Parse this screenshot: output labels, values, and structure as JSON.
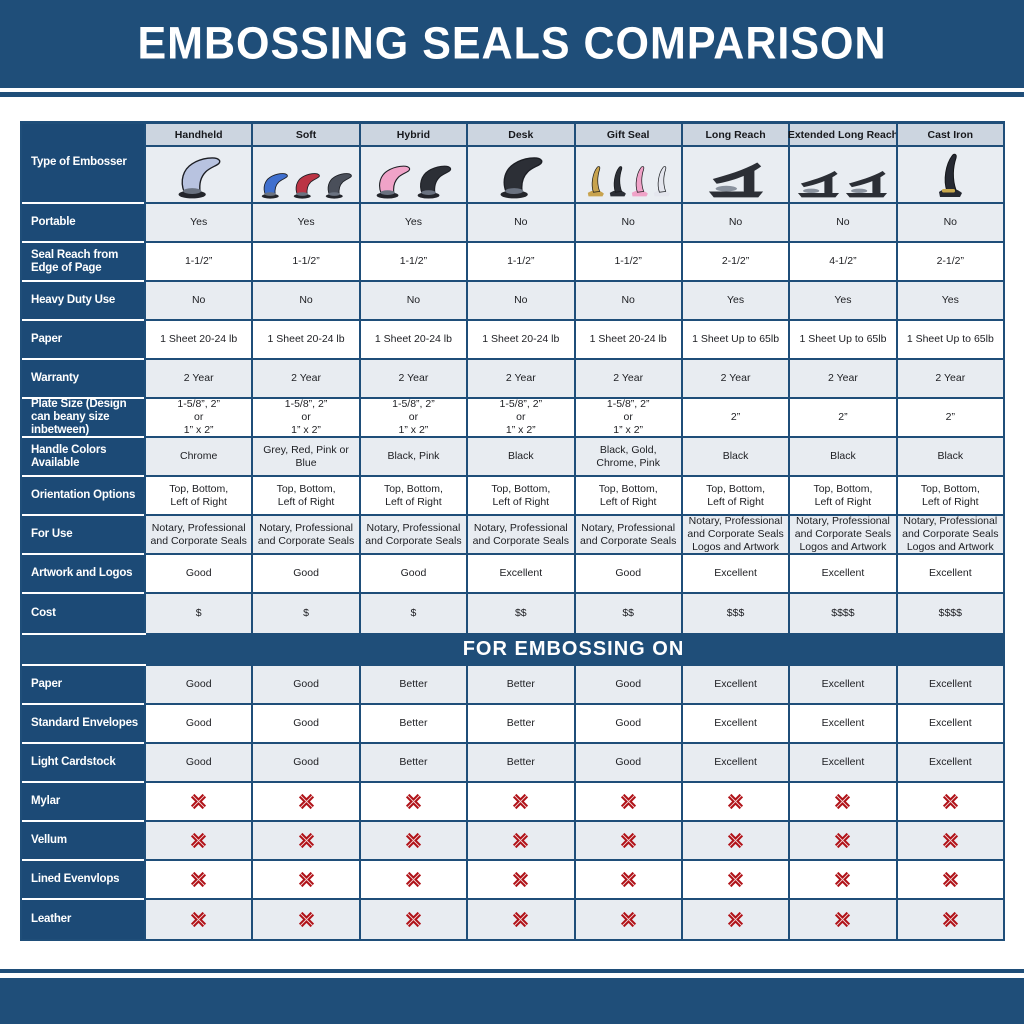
{
  "header": {
    "title": "EMBOSSING SEALS COMPARISON"
  },
  "colors": {
    "navy": "#1f4e79",
    "label_navy": "#1c4a76",
    "header_cell_bg": "#ccd5e0",
    "shade_row_bg": "#e8ecf1",
    "image_row_bg": "#e9edf2",
    "x_red": "#b01218"
  },
  "icons": {
    "not_suitable_icon": "✖"
  },
  "chart_data": {
    "type": "table",
    "title": "EMBOSSING SEALS COMPARISON",
    "corner_label": "Type of Embosser",
    "columns": [
      "Handheld",
      "Soft",
      "Hybrid",
      "Desk",
      "Gift Seal",
      "Long Reach",
      "Extended Long Reach",
      "Cast Iron"
    ],
    "embossers": [
      {
        "icon": "handheld-embosser-image",
        "shape": "clamp",
        "unit_colors": [
          "#b8c3e0"
        ]
      },
      {
        "icon": "soft-embosser-image",
        "shape": "clamp",
        "unit_colors": [
          "#3f6fce",
          "#bb3444",
          "#4a4f5a"
        ]
      },
      {
        "icon": "hybrid-embosser-image",
        "shape": "clamp",
        "unit_colors": [
          "#f0a3c8",
          "#2c2f36"
        ]
      },
      {
        "icon": "desk-embosser-image",
        "shape": "clamp",
        "unit_colors": [
          "#2c2f36"
        ]
      },
      {
        "icon": "gift-seal-embosser-image",
        "shape": "upright",
        "unit_colors": [
          "#c8a34e",
          "#2c2f36",
          "#f0a3c8",
          "#e4e6ee"
        ]
      },
      {
        "icon": "long-reach-embosser-image",
        "shape": "press",
        "unit_colors": [
          "#2c2f36"
        ]
      },
      {
        "icon": "extended-long-reach-embosser-image",
        "shape": "press",
        "unit_colors": [
          "#2c2f36",
          "#2c2f36"
        ]
      },
      {
        "icon": "cast-iron-embosser-image",
        "shape": "upright-gold",
        "unit_colors": [
          "#262932"
        ]
      }
    ],
    "rows": [
      {
        "label": "Portable",
        "values": [
          "Yes",
          "Yes",
          "Yes",
          "No",
          "No",
          "No",
          "No",
          "No"
        ]
      },
      {
        "label": "Seal Reach from Edge of Page",
        "values": [
          "1-1/2”",
          "1-1/2”",
          "1-1/2”",
          "1-1/2”",
          "1-1/2”",
          "2-1/2”",
          "4-1/2”",
          "2-1/2”"
        ]
      },
      {
        "label": "Heavy Duty Use",
        "values": [
          "No",
          "No",
          "No",
          "No",
          "No",
          "Yes",
          "Yes",
          "Yes"
        ]
      },
      {
        "label": "Paper",
        "values": [
          "1 Sheet 20-24 lb",
          "1 Sheet 20-24 lb",
          "1 Sheet 20-24 lb",
          "1 Sheet 20-24 lb",
          "1 Sheet 20-24 lb",
          "1 Sheet Up to 65lb",
          "1 Sheet Up to 65lb",
          "1 Sheet Up to 65lb"
        ]
      },
      {
        "label": "Warranty",
        "values": [
          "2 Year",
          "2 Year",
          "2 Year",
          "2 Year",
          "2 Year",
          "2 Year",
          "2 Year",
          "2 Year"
        ]
      },
      {
        "label": "Plate Size (Design can beany size inbetween)",
        "values": [
          "1-5/8”, 2”\nor\n1” x 2”",
          "1-5/8”, 2”\nor\n1” x 2”",
          "1-5/8”, 2”\nor\n1” x 2”",
          "1-5/8”, 2”\nor\n1” x 2”",
          "1-5/8”, 2”\nor\n1” x 2”",
          "2”",
          "2”",
          "2”"
        ]
      },
      {
        "label": "Handle Colors Available",
        "values": [
          "Chrome",
          "Grey, Red, Pink or Blue",
          "Black, Pink",
          "Black",
          "Black, Gold, Chrome, Pink",
          "Black",
          "Black",
          "Black"
        ]
      },
      {
        "label": "Orientation Options",
        "values": [
          "Top, Bottom,\nLeft of Right",
          "Top, Bottom,\nLeft of Right",
          "Top, Bottom,\nLeft of Right",
          "Top, Bottom,\nLeft of Right",
          "Top, Bottom,\nLeft of Right",
          "Top, Bottom,\nLeft of Right",
          "Top, Bottom,\nLeft of Right",
          "Top, Bottom,\nLeft of Right"
        ]
      },
      {
        "label": "For Use",
        "values": [
          "Notary, Professional\nand Corporate Seals",
          "Notary, Professional\nand Corporate Seals",
          "Notary, Professional\nand Corporate Seals",
          "Notary, Professional\nand Corporate Seals",
          "Notary, Professional\nand Corporate Seals",
          "Notary, Professional\nand Corporate Seals\nLogos and Artwork",
          "Notary, Professional\nand Corporate Seals\nLogos and Artwork",
          "Notary, Professional\nand Corporate Seals\nLogos and Artwork"
        ]
      },
      {
        "label": "Artwork and Logos",
        "values": [
          "Good",
          "Good",
          "Good",
          "Excellent",
          "Good",
          "Excellent",
          "Excellent",
          "Excellent"
        ]
      },
      {
        "label": "Cost",
        "values": [
          "$",
          "$",
          "$",
          "$$",
          "$$",
          "$$$",
          "$$$$",
          "$$$$"
        ]
      }
    ],
    "section_banner": "FOR EMBOSSING ON",
    "embossing_rows": [
      {
        "label": "Paper",
        "values": [
          "Good",
          "Good",
          "Better",
          "Better",
          "Good",
          "Excellent",
          "Excellent",
          "Excellent"
        ]
      },
      {
        "label": "Standard Envelopes",
        "values": [
          "Good",
          "Good",
          "Better",
          "Better",
          "Good",
          "Excellent",
          "Excellent",
          "Excellent"
        ]
      },
      {
        "label": "Light Cardstock",
        "values": [
          "Good",
          "Good",
          "Better",
          "Better",
          "Good",
          "Excellent",
          "Excellent",
          "Excellent"
        ]
      },
      {
        "label": "Mylar",
        "values": [
          "✖",
          "✖",
          "✖",
          "✖",
          "✖",
          "✖",
          "✖",
          "✖"
        ]
      },
      {
        "label": "Vellum",
        "values": [
          "✖",
          "✖",
          "✖",
          "✖",
          "✖",
          "✖",
          "✖",
          "✖"
        ]
      },
      {
        "label": "Lined Evenvlops",
        "values": [
          "✖",
          "✖",
          "✖",
          "✖",
          "✖",
          "✖",
          "✖",
          "✖"
        ]
      },
      {
        "label": "Leather",
        "values": [
          "✖",
          "✖",
          "✖",
          "✖",
          "✖",
          "✖",
          "✖",
          "✖"
        ]
      }
    ]
  }
}
